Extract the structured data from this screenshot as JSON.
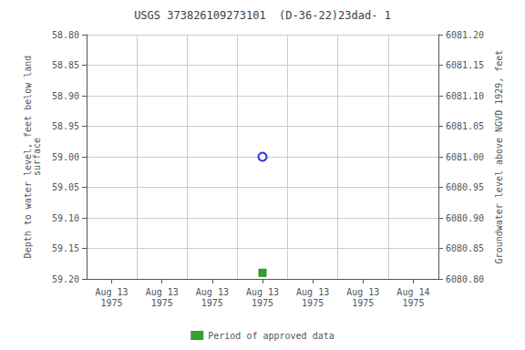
{
  "chart_data": {
    "type": "scatter",
    "title": "USGS 373826109273101  (D-36-22)23dad- 1",
    "y_label": "Depth to water level, feet below land\nsurface",
    "y2_label": "Groundwater level above NGVD 1929, feet",
    "categories": [
      "Aug 13\n1975",
      "Aug 13\n1975",
      "Aug 13\n1975",
      "Aug 13\n1975",
      "Aug 13\n1975",
      "Aug 13\n1975",
      "Aug 14\n1975"
    ],
    "series": [
      {
        "color": "#0000cc",
        "marker": "open_circle",
        "values": [
          null,
          null,
          null,
          59.0,
          null,
          null,
          null
        ]
      },
      {
        "name": "Period of approved data",
        "color": "#008800",
        "marker": "square",
        "values": [
          null,
          null,
          null,
          59.19,
          null,
          null,
          null
        ]
      }
    ],
    "ylim": [
      59.2,
      58.8
    ],
    "yticks": [
      {
        "value": 58.8,
        "label": "58.80"
      },
      58.85,
      {
        "value": 58.9,
        "label": "58.90"
      },
      58.95,
      {
        "value": 59.0,
        "label": "59.00"
      },
      59.05,
      {
        "value": 59.1,
        "label": "59.10"
      },
      59.15,
      {
        "value": 59.2,
        "label": "59.20"
      }
    ],
    "y2lim": [
      6080.8,
      6081.2
    ],
    "y2ticks": [
      {
        "value": 6081.2,
        "label": "6081.20"
      },
      6081.15,
      {
        "value": 6081.1,
        "label": "6081.10"
      },
      6081.05,
      {
        "value": 6081.0,
        "label": "6081.00"
      },
      6080.95,
      {
        "value": 6080.9,
        "label": "6080.90"
      },
      6080.85,
      {
        "value": 6080.8,
        "label": "6080.80"
      }
    ],
    "grid": true,
    "legend": "bottom"
  }
}
